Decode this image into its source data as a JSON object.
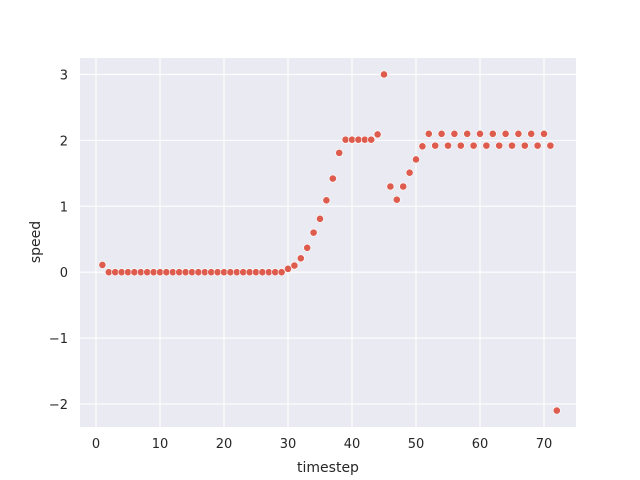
{
  "chart_data": {
    "type": "scatter",
    "xlabel": "timestep",
    "ylabel": "speed",
    "xlim": [
      -2.5,
      75
    ],
    "ylim": [
      -2.35,
      3.25
    ],
    "xticks": [
      0,
      10,
      20,
      30,
      40,
      50,
      60,
      70
    ],
    "yticks": [
      -2,
      -1,
      0,
      1,
      2,
      3
    ],
    "ytick_labels": [
      "−2",
      "−1",
      "0",
      "1",
      "2",
      "3"
    ],
    "grid": true,
    "background": "#eaeaf2",
    "grid_color": "#ffffff",
    "point_color": "#dd5c4e",
    "series": [
      {
        "x": [
          1,
          2,
          3,
          4,
          5,
          6,
          7,
          8,
          9,
          10,
          11,
          12,
          13,
          14,
          15,
          16,
          17,
          18,
          19,
          20,
          21,
          22,
          23,
          24,
          25,
          26,
          27,
          28,
          29,
          30,
          31,
          32,
          33,
          34,
          35,
          36,
          37,
          38,
          39,
          40,
          41,
          42,
          43,
          44,
          45,
          46,
          47,
          48,
          49,
          50,
          51,
          52,
          53,
          54,
          55,
          56,
          57,
          58,
          59,
          60,
          61,
          62,
          63,
          64,
          65,
          66,
          67,
          68,
          69,
          70,
          71,
          72
        ],
        "y": [
          0.11,
          0,
          0,
          0,
          0,
          0,
          0,
          0,
          0,
          0,
          0,
          0,
          0,
          0,
          0,
          0,
          0,
          0,
          0,
          0,
          0,
          0,
          0,
          0,
          0,
          0,
          0,
          0,
          0,
          0.05,
          0.1,
          0.21,
          0.37,
          0.6,
          0.81,
          1.09,
          1.42,
          1.81,
          2.01,
          2.01,
          2.01,
          2.01,
          2.01,
          2.09,
          3.0,
          1.3,
          1.1,
          1.3,
          1.51,
          1.71,
          1.91,
          2.1,
          1.92,
          2.1,
          1.92,
          2.1,
          1.92,
          2.1,
          1.92,
          2.1,
          1.92,
          2.1,
          1.92,
          2.1,
          1.92,
          2.1,
          1.92,
          2.1,
          1.92,
          2.1,
          1.92,
          -2.1
        ]
      }
    ]
  }
}
